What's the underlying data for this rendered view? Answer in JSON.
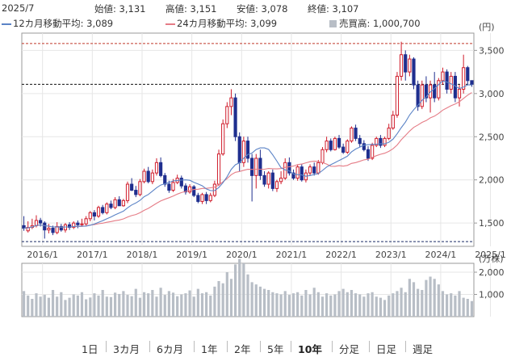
{
  "header": {
    "date": "2025/7",
    "open_label": "始値:",
    "open_value": "3,131",
    "high_label": "高値:",
    "high_value": "3,151",
    "low_label": "安値:",
    "low_value": "3,078",
    "close_label": "終値:",
    "close_value": "3,107",
    "ma12_label": "12カ月移動平均:",
    "ma12_value": "3,089",
    "ma24_label": "24カ月移動平均:",
    "ma24_value": "3,099",
    "volume_label": "売買高:",
    "volume_value": "1,000,700"
  },
  "colors": {
    "up": "#d01c2b",
    "down": "#1f2f8f",
    "ma12": "#5b83c6",
    "ma24": "#e57c86",
    "volume": "#b8bec6",
    "dashed_high": "#c0392b",
    "dashed_low": "#1a2b66"
  },
  "periods": [
    "1日",
    "3カ月",
    "6カ月",
    "1年",
    "2年",
    "5年",
    "10年",
    "分足",
    "日足",
    "週足"
  ],
  "active_period": "10年",
  "chart_data": {
    "type": "candlestick",
    "price_unit": "(円)",
    "volume_unit": "(万株)",
    "price_ticks": [
      1500,
      2000,
      2500,
      3000,
      3500
    ],
    "price_tick_labels": [
      "1,500",
      "2,000",
      "2,500",
      "3,000",
      "3,500"
    ],
    "price_range": [
      1230,
      3700
    ],
    "volume_ticks": [
      1000,
      2000
    ],
    "volume_tick_labels": [
      "1,000",
      "2,000"
    ],
    "volume_range": [
      0,
      2400
    ],
    "x_labels": [
      "2016/1",
      "2017/1",
      "2018/1",
      "2019/1",
      "2020/1",
      "2021/1",
      "2022/1",
      "2023/1",
      "2024/1",
      "2025/1"
    ],
    "dashed_levels": {
      "high": 3580,
      "current": 3107,
      "low": 1285
    },
    "start": "2015/8",
    "monthly": [
      [
        1470,
        1560,
        1440,
        1410,
        1580
      ],
      [
        1410,
        1480,
        1450,
        1390,
        1520
      ],
      [
        1450,
        1520,
        1470,
        1430,
        1550
      ],
      [
        1470,
        1560,
        1530,
        1450,
        1590
      ],
      [
        1530,
        1490,
        1500,
        1460,
        1560
      ],
      [
        1500,
        1380,
        1420,
        1320,
        1520
      ],
      [
        1420,
        1460,
        1440,
        1380,
        1490
      ],
      [
        1440,
        1420,
        1390,
        1360,
        1470
      ],
      [
        1390,
        1480,
        1460,
        1370,
        1510
      ],
      [
        1460,
        1440,
        1420,
        1400,
        1490
      ],
      [
        1420,
        1470,
        1480,
        1390,
        1500
      ],
      [
        1480,
        1450,
        1450,
        1420,
        1510
      ],
      [
        1450,
        1490,
        1500,
        1430,
        1520
      ],
      [
        1500,
        1460,
        1480,
        1440,
        1530
      ],
      [
        1480,
        1500,
        1490,
        1460,
        1550
      ],
      [
        1490,
        1530,
        1550,
        1470,
        1580
      ],
      [
        1550,
        1600,
        1620,
        1520,
        1640
      ],
      [
        1620,
        1560,
        1580,
        1530,
        1650
      ],
      [
        1580,
        1660,
        1680,
        1560,
        1700
      ],
      [
        1680,
        1630,
        1620,
        1600,
        1710
      ],
      [
        1620,
        1700,
        1720,
        1600,
        1740
      ],
      [
        1720,
        1690,
        1680,
        1660,
        1760
      ],
      [
        1680,
        1750,
        1770,
        1660,
        1800
      ],
      [
        1770,
        1720,
        1700,
        1700,
        1810
      ],
      [
        1700,
        1740,
        1760,
        1690,
        1780
      ],
      [
        1760,
        1900,
        1950,
        1730,
        1980
      ],
      [
        1950,
        1900,
        1880,
        1870,
        2020
      ],
      [
        1880,
        1850,
        1830,
        1800,
        1930
      ],
      [
        1830,
        1950,
        1980,
        1810,
        2010
      ],
      [
        1980,
        2080,
        2100,
        1960,
        2130
      ],
      [
        2100,
        2000,
        1980,
        1960,
        2150
      ],
      [
        1980,
        2060,
        2080,
        1950,
        2120
      ],
      [
        2080,
        2150,
        2200,
        2050,
        2250
      ],
      [
        2200,
        2100,
        2050,
        2030,
        2260
      ],
      [
        2050,
        2000,
        1950,
        1920,
        2080
      ],
      [
        1950,
        1900,
        1880,
        1850,
        1990
      ],
      [
        1880,
        1950,
        1970,
        1860,
        2010
      ],
      [
        1970,
        2000,
        2020,
        1950,
        2060
      ],
      [
        2020,
        1950,
        1930,
        1900,
        2050
      ],
      [
        1930,
        1880,
        1860,
        1830,
        1960
      ],
      [
        1860,
        1900,
        1920,
        1840,
        1950
      ],
      [
        1920,
        1850,
        1820,
        1800,
        1940
      ],
      [
        1820,
        1780,
        1750,
        1730,
        1850
      ],
      [
        1750,
        1800,
        1830,
        1720,
        1850
      ],
      [
        1830,
        1780,
        1760,
        1720,
        1860
      ],
      [
        1760,
        1800,
        1820,
        1740,
        1850
      ],
      [
        1820,
        1900,
        1950,
        1800,
        1990
      ],
      [
        1950,
        2200,
        2300,
        1930,
        2350
      ],
      [
        2300,
        2550,
        2650,
        2280,
        2700
      ],
      [
        2650,
        2800,
        2850,
        2600,
        2900
      ],
      [
        2850,
        3000,
        2950,
        2750,
        3050
      ],
      [
        2950,
        2600,
        2500,
        2450,
        3000
      ],
      [
        2500,
        2300,
        2200,
        2100,
        2550
      ],
      [
        2200,
        2400,
        2450,
        2150,
        2500
      ],
      [
        2450,
        2300,
        2250,
        2200,
        2500
      ],
      [
        2250,
        2100,
        2050,
        1750,
        2300
      ],
      [
        2050,
        2200,
        2250,
        1900,
        2300
      ],
      [
        2250,
        2100,
        2050,
        2000,
        2350
      ],
      [
        2050,
        2000,
        1950,
        1920,
        2100
      ],
      [
        1950,
        2050,
        2080,
        1900,
        2100
      ],
      [
        2080,
        1950,
        1900,
        1870,
        2120
      ],
      [
        1900,
        1950,
        1980,
        1860,
        2000
      ],
      [
        1980,
        2000,
        2020,
        1950,
        2100
      ],
      [
        2020,
        2150,
        2200,
        2000,
        2250
      ],
      [
        2200,
        2100,
        2080,
        2050,
        2260
      ],
      [
        2080,
        2050,
        2020,
        2000,
        2120
      ],
      [
        2020,
        2100,
        2150,
        1990,
        2180
      ],
      [
        2150,
        2050,
        2000,
        1980,
        2180
      ],
      [
        2000,
        2050,
        2080,
        1970,
        2120
      ],
      [
        2080,
        2120,
        2150,
        2050,
        2180
      ],
      [
        2150,
        2100,
        2080,
        2050,
        2200
      ],
      [
        2080,
        2150,
        2200,
        2060,
        2230
      ],
      [
        2200,
        2300,
        2350,
        2180,
        2380
      ],
      [
        2350,
        2400,
        2450,
        2320,
        2500
      ],
      [
        2450,
        2380,
        2350,
        2330,
        2480
      ],
      [
        2350,
        2450,
        2480,
        2340,
        2500
      ],
      [
        2480,
        2400,
        2380,
        2360,
        2520
      ],
      [
        2380,
        2350,
        2320,
        2300,
        2420
      ],
      [
        2320,
        2420,
        2450,
        2300,
        2470
      ],
      [
        2450,
        2550,
        2600,
        2430,
        2620
      ],
      [
        2600,
        2500,
        2480,
        2450,
        2640
      ],
      [
        2480,
        2450,
        2420,
        2380,
        2520
      ],
      [
        2420,
        2380,
        2350,
        2330,
        2460
      ],
      [
        2350,
        2300,
        2250,
        2220,
        2390
      ],
      [
        2250,
        2350,
        2400,
        2230,
        2430
      ],
      [
        2400,
        2450,
        2480,
        2380,
        2500
      ],
      [
        2480,
        2420,
        2400,
        2370,
        2520
      ],
      [
        2400,
        2450,
        2480,
        2380,
        2500
      ],
      [
        2480,
        2550,
        2600,
        2460,
        2650
      ],
      [
        2600,
        2700,
        2750,
        2580,
        2800
      ],
      [
        2750,
        3100,
        3200,
        2720,
        3250
      ],
      [
        3200,
        3400,
        3450,
        3150,
        3600
      ],
      [
        3450,
        3300,
        3250,
        3150,
        3500
      ],
      [
        3250,
        3350,
        3400,
        3200,
        3450
      ],
      [
        3400,
        3200,
        3100,
        3050,
        3420
      ],
      [
        3100,
        2900,
        2850,
        2800,
        3150
      ],
      [
        2850,
        3050,
        3100,
        2820,
        3150
      ],
      [
        3100,
        3000,
        2950,
        2900,
        3200
      ],
      [
        2950,
        3050,
        3100,
        2780,
        3150
      ],
      [
        3100,
        3000,
        2950,
        2900,
        3250
      ],
      [
        2950,
        3100,
        3150,
        2920,
        3180
      ],
      [
        3150,
        3200,
        3250,
        3100,
        3300
      ],
      [
        3250,
        3100,
        3050,
        3000,
        3280
      ],
      [
        3050,
        3150,
        3200,
        3000,
        3250
      ],
      [
        3200,
        3050,
        2950,
        2900,
        3250
      ],
      [
        2950,
        3000,
        3050,
        2850,
        3100
      ],
      [
        3050,
        3200,
        3300,
        3000,
        3450
      ],
      [
        3300,
        3200,
        3150,
        3100,
        3320
      ],
      [
        3150,
        3131,
        3107,
        3078,
        3151
      ]
    ]
  }
}
